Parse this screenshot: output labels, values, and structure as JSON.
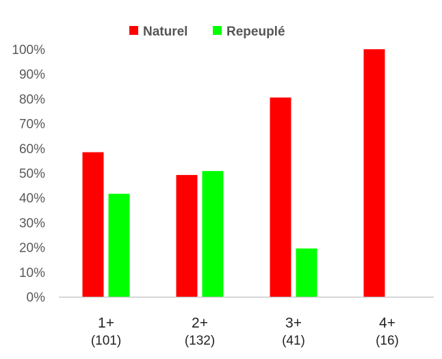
{
  "chart_data": {
    "type": "bar",
    "title": "",
    "xlabel": "",
    "ylabel": "",
    "ylim": [
      0,
      100
    ],
    "yticks": [
      "0%",
      "10%",
      "20%",
      "30%",
      "40%",
      "50%",
      "60%",
      "70%",
      "80%",
      "90%",
      "100%"
    ],
    "categories": [
      "1+",
      "2+",
      "3+",
      "4+"
    ],
    "category_counts": [
      "(101)",
      "(132)",
      "(41)",
      "(16)"
    ],
    "series": [
      {
        "name": "Naturel",
        "color": "#ff0000",
        "values": [
          58.4,
          49.2,
          80.5,
          100
        ]
      },
      {
        "name": "Repeuplé",
        "color": "#00ff00",
        "values": [
          41.6,
          50.8,
          19.5,
          0
        ]
      }
    ],
    "legend_position": "top",
    "grid": false
  }
}
